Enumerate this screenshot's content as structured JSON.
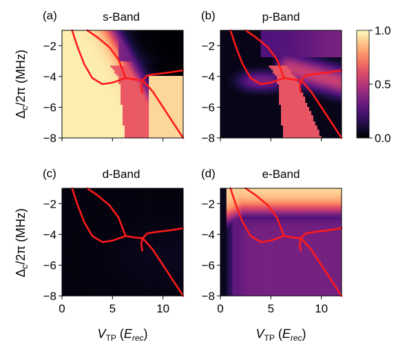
{
  "chart_data": [
    {
      "type": "heatmap",
      "panel_label": "(a)",
      "title": "s-Band",
      "ylabel_symbol": "Δ",
      "ylabel_sub": "c",
      "ylabel_rest": "/2π (MHz)",
      "xlim": [
        0,
        12
      ],
      "ylim": [
        -8,
        -1
      ],
      "yticks": [
        -2,
        -4,
        -6,
        -8
      ],
      "xticks": [
        0,
        5,
        10
      ],
      "show_xtick_labels": false,
      "field": "s"
    },
    {
      "type": "heatmap",
      "panel_label": "(b)",
      "title": "p-Band",
      "xlim": [
        0,
        12
      ],
      "ylim": [
        -8,
        -1
      ],
      "yticks": [
        -2,
        -4,
        -6,
        -8
      ],
      "xticks": [
        0,
        5,
        10
      ],
      "show_xtick_labels": false,
      "field": "p"
    },
    {
      "type": "heatmap",
      "panel_label": "(c)",
      "title": "d-Band",
      "ylabel_symbol": "Δ",
      "ylabel_sub": "c",
      "ylabel_rest": "/2π (MHz)",
      "xlabel_symbol": "V",
      "xlabel_sub": "TP",
      "xlabel_open": " (",
      "xlabel_unit": "E",
      "xlabel_unit_sub": "rec",
      "xlabel_close": ")",
      "xlim": [
        0,
        12
      ],
      "ylim": [
        -8,
        -1
      ],
      "yticks": [
        -2,
        -4,
        -6,
        -8
      ],
      "xticks": [
        0,
        5,
        10
      ],
      "show_xtick_labels": true,
      "field": "d"
    },
    {
      "type": "heatmap",
      "panel_label": "(d)",
      "title": "e-Band",
      "xlabel_symbol": "V",
      "xlabel_sub": "TP",
      "xlabel_open": " (",
      "xlabel_unit": "E",
      "xlabel_unit_sub": "rec",
      "xlabel_close": ")",
      "xlim": [
        0,
        12
      ],
      "ylim": [
        -8,
        -1
      ],
      "yticks": [
        -2,
        -4,
        -6,
        -8
      ],
      "xticks": [
        0,
        5,
        10
      ],
      "show_xtick_labels": true,
      "field": "e"
    }
  ],
  "colorbar": {
    "ticks": [
      "0.0",
      "0.5",
      "1.0"
    ],
    "tick_values": [
      0,
      0.5,
      1
    ],
    "range": [
      0,
      1
    ],
    "colormap": "magma"
  },
  "curve_color": "#ff1a1a",
  "curves": {
    "left_branch": [
      [
        1.0,
        -1.0
      ],
      [
        1.5,
        -2.0
      ],
      [
        2.2,
        -3.2
      ],
      [
        3.0,
        -4.1
      ],
      [
        4.0,
        -4.5
      ],
      [
        5.0,
        -4.4
      ],
      [
        6.3,
        -4.1
      ]
    ],
    "upper_branch": [
      [
        2.5,
        -1.0
      ],
      [
        3.5,
        -1.45
      ],
      [
        4.7,
        -2.1
      ],
      [
        5.6,
        -2.9
      ],
      [
        6.3,
        -4.1
      ]
    ],
    "middle_link": [
      [
        6.3,
        -4.1
      ],
      [
        7.2,
        -4.2
      ],
      [
        8.0,
        -4.25
      ]
    ],
    "lower_right_branch": [
      [
        8.0,
        -4.25
      ],
      [
        9.0,
        -5.0
      ],
      [
        10.0,
        -6.0
      ],
      [
        11.0,
        -7.0
      ],
      [
        12.0,
        -8.0
      ]
    ],
    "right_branch": [
      [
        8.0,
        -4.25
      ],
      [
        8.4,
        -3.95
      ],
      [
        9.2,
        -3.85
      ],
      [
        10.5,
        -3.75
      ],
      [
        12.0,
        -3.6
      ]
    ],
    "small_dip": [
      [
        8.0,
        -4.25
      ],
      [
        7.85,
        -4.6
      ],
      [
        7.95,
        -5.05
      ]
    ]
  }
}
